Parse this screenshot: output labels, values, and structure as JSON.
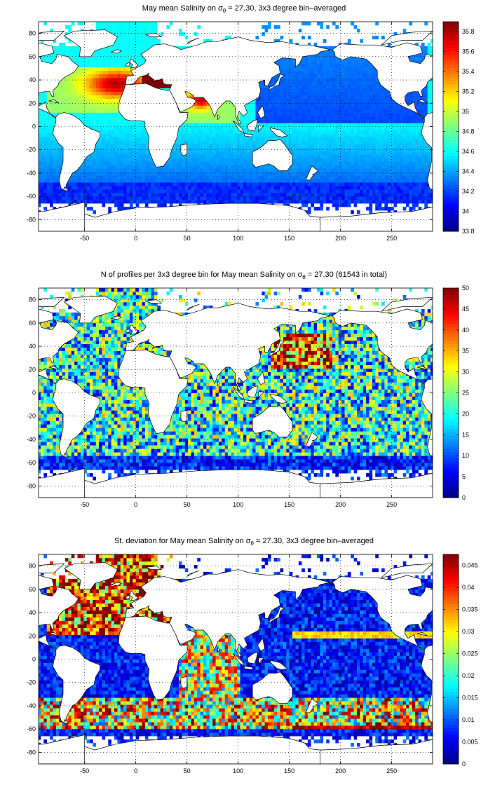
{
  "colors": {
    "colormap": "jet",
    "land": "#ffffff",
    "coast": "#000000",
    "grid": "#000000"
  },
  "chart_data": [
    {
      "type": "heatmap",
      "title": "May mean Salinity on σθ = 27.30, 3x3 degree bin–averaged",
      "title_parts": [
        "May mean Salinity on σ",
        "θ",
        " = 27.30, 3x3 degree bin–averaged"
      ],
      "xlim": [
        -95,
        290
      ],
      "ylim": [
        -90,
        90
      ],
      "xticks": [
        -50,
        0,
        50,
        100,
        150,
        200,
        250
      ],
      "yticks": [
        -80,
        -60,
        -40,
        -20,
        0,
        20,
        40,
        60,
        80
      ],
      "grid": true,
      "colorbar": {
        "min": 33.8,
        "max": 35.9,
        "ticks": [
          33.8,
          34,
          34.2,
          34.4,
          34.6,
          34.8,
          35,
          35.2,
          35.4,
          35.6,
          35.8
        ]
      },
      "field": "salinity"
    },
    {
      "type": "heatmap",
      "title": "N of profiles per 3x3 degree bin for May mean Salinity on σθ = 27.30 (61543 in total)",
      "title_parts": [
        "N of profiles per 3x3 degree bin for May mean Salinity on σ",
        "θ",
        " = 27.30 (61543 in total)"
      ],
      "xlim": [
        -95,
        290
      ],
      "ylim": [
        -90,
        90
      ],
      "xticks": [
        -50,
        0,
        50,
        100,
        150,
        200,
        250
      ],
      "yticks": [
        -80,
        -60,
        -40,
        -20,
        0,
        20,
        40,
        60,
        80
      ],
      "grid": true,
      "colorbar": {
        "min": 0,
        "max": 50,
        "ticks": [
          0,
          5,
          10,
          15,
          20,
          25,
          30,
          35,
          40,
          45,
          50
        ]
      },
      "field": "count"
    },
    {
      "type": "heatmap",
      "title": "St. deviation for May mean Salinity on σθ = 27.30, 3x3 degree bin–averaged",
      "title_parts": [
        "St. deviation for May mean Salinity on σ",
        "θ",
        " = 27.30, 3x3 degree bin–averaged"
      ],
      "xlim": [
        -95,
        290
      ],
      "ylim": [
        -90,
        90
      ],
      "xticks": [
        -50,
        0,
        50,
        100,
        150,
        200,
        250
      ],
      "yticks": [
        -80,
        -60,
        -40,
        -20,
        0,
        20,
        40,
        60,
        80
      ],
      "grid": true,
      "colorbar": {
        "min": 0,
        "max": 0.0475,
        "ticks": [
          0,
          0.005,
          0.01,
          0.015,
          0.02,
          0.025,
          0.03,
          0.035,
          0.04,
          0.045
        ]
      },
      "field": "std"
    }
  ]
}
